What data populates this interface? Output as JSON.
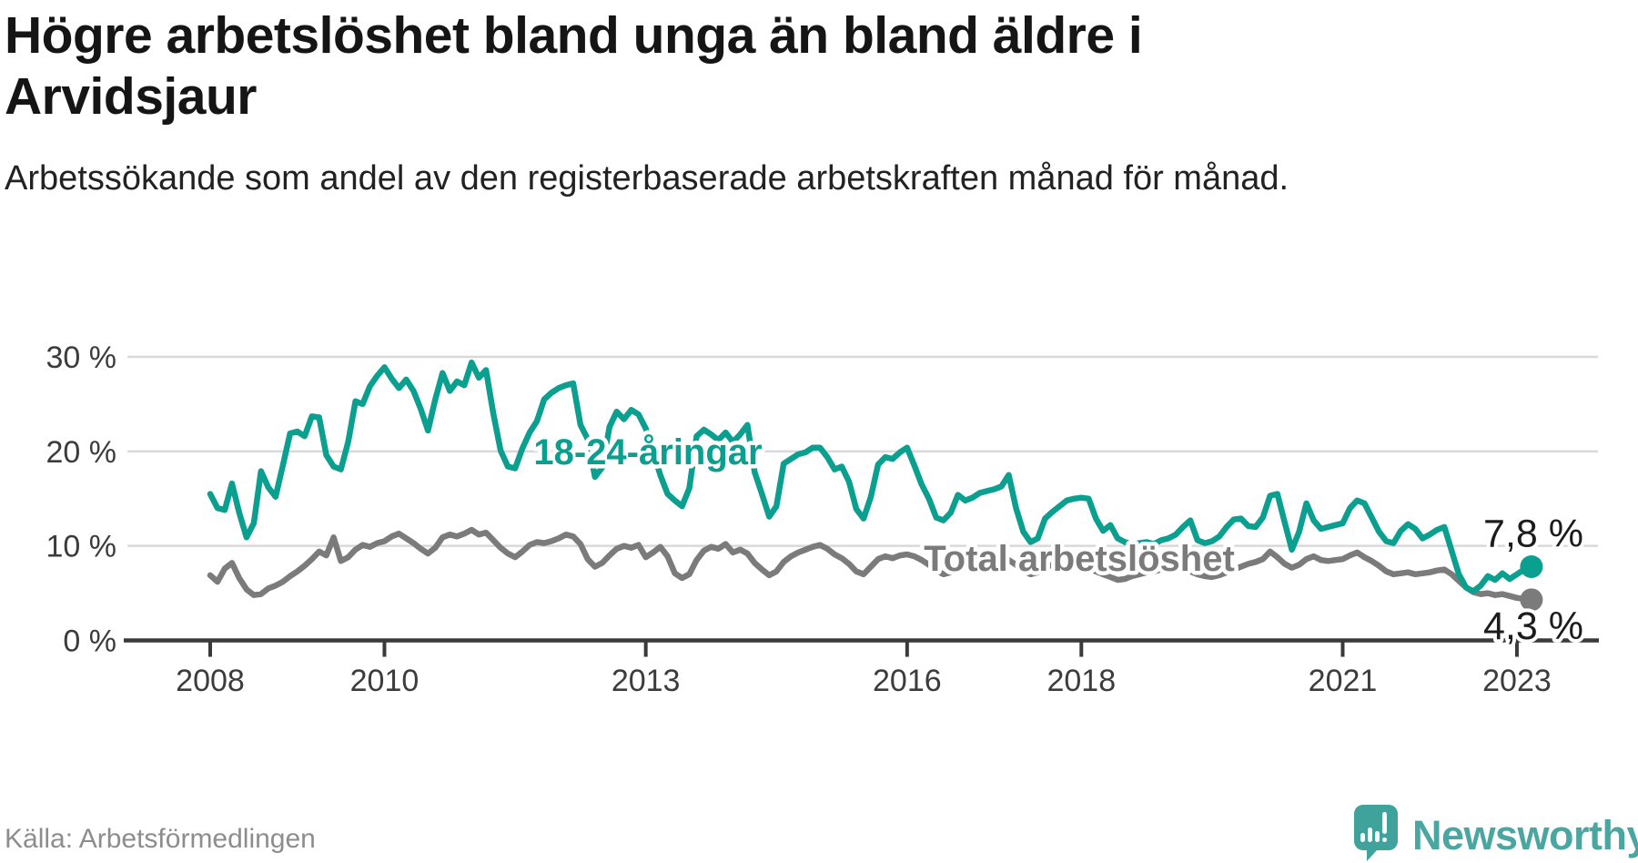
{
  "header": {
    "title": "Högre arbetslöshet bland unga än bland äldre i Arvidsjaur",
    "subtitle": "Arbetssökande som andel av den registerbaserade arbetskraften månad för månad."
  },
  "footer": {
    "source": "Källa: Arbetsförmedlingen",
    "brand_name": "Newsworthy",
    "brand_icon": "newsworthy-speech-bubble-bar-chart-icon",
    "brand_color": "#4aa6a1",
    "brand_icon_color": "#3fa29b"
  },
  "colors": {
    "young_series": "#0b9f90",
    "total_series": "#7b7b7b",
    "gridline": "#d9d9d9",
    "axis": "#3a3a3a",
    "axis_text": "#3c3c3c",
    "end_label_text": "#1c1c1c"
  },
  "chart_data": {
    "type": "line",
    "x_start": "2008-01",
    "x_end": "2023-03",
    "x_unit": "month",
    "grid": "horizontal-only",
    "ylim": [
      0,
      31.5
    ],
    "y_ticks": [
      {
        "value": 30,
        "label": "30 %"
      },
      {
        "value": 20,
        "label": "20 %"
      },
      {
        "value": 10,
        "label": "10 %"
      },
      {
        "value": 0,
        "label": "0 %"
      }
    ],
    "x_ticks": [
      {
        "year": 2008,
        "label": "2008"
      },
      {
        "year": 2010,
        "label": "2010"
      },
      {
        "year": 2013,
        "label": "2013"
      },
      {
        "year": 2016,
        "label": "2016"
      },
      {
        "year": 2018,
        "label": "2018"
      },
      {
        "year": 2021,
        "label": "2021"
      },
      {
        "year": 2023,
        "label": "2023"
      }
    ],
    "series": [
      {
        "name": "18-24-åringar",
        "color": "#0b9f90",
        "end_label": "7,8 %",
        "end_value": 7.8,
        "values": [
          15.5,
          14.0,
          13.8,
          16.6,
          13.5,
          10.9,
          12.4,
          17.9,
          16.2,
          15.2,
          18.5,
          21.9,
          22.1,
          21.6,
          23.7,
          23.6,
          19.6,
          18.4,
          18.1,
          21.0,
          25.3,
          25.0,
          26.9,
          28.0,
          28.9,
          27.7,
          26.7,
          27.6,
          26.4,
          24.5,
          22.2,
          25.5,
          28.3,
          26.4,
          27.4,
          27.0,
          29.4,
          27.8,
          28.6,
          24.0,
          20.1,
          18.4,
          18.2,
          20.3,
          22.0,
          23.2,
          25.5,
          26.2,
          26.7,
          27.0,
          27.2,
          22.8,
          21.3,
          17.3,
          18.3,
          22.6,
          24.2,
          23.4,
          24.4,
          23.9,
          22.4,
          20.0,
          17.5,
          15.5,
          14.8,
          14.2,
          16.1,
          21.6,
          22.3,
          21.8,
          21.2,
          22.0,
          21.0,
          21.8,
          22.8,
          17.8,
          15.5,
          13.1,
          14.2,
          18.7,
          19.2,
          19.7,
          19.9,
          20.4,
          20.4,
          19.4,
          18.1,
          18.4,
          16.8,
          13.9,
          12.9,
          15.2,
          18.6,
          19.4,
          19.2,
          19.9,
          20.4,
          18.5,
          16.5,
          15.0,
          13.0,
          12.7,
          13.5,
          15.4,
          14.8,
          15.1,
          15.6,
          15.8,
          16.0,
          16.3,
          17.5,
          14.0,
          11.5,
          10.4,
          10.8,
          12.9,
          13.6,
          14.2,
          14.8,
          15.0,
          15.1,
          15.0,
          12.9,
          11.6,
          12.2,
          10.8,
          10.4,
          10.2,
          10.3,
          10.4,
          10.2,
          10.6,
          10.8,
          11.2,
          12.0,
          12.7,
          10.6,
          10.3,
          10.5,
          11.0,
          12.0,
          12.8,
          12.9,
          12.1,
          12.0,
          13.0,
          15.3,
          15.5,
          12.5,
          9.6,
          11.5,
          14.5,
          12.7,
          11.8,
          12.0,
          12.2,
          12.4,
          14.0,
          14.8,
          14.5,
          13.0,
          11.5,
          10.5,
          10.3,
          11.6,
          12.3,
          11.8,
          10.8,
          11.2,
          11.7,
          12.0,
          9.5,
          7.0,
          5.6,
          5.2,
          5.8,
          6.8,
          6.4,
          7.1,
          6.5,
          7.0,
          7.5,
          7.8
        ]
      },
      {
        "name": "Total arbetslöshet",
        "color": "#7b7b7b",
        "end_label": "4,3 %",
        "end_value": 4.3,
        "values": [
          6.9,
          6.2,
          7.6,
          8.2,
          6.6,
          5.4,
          4.8,
          4.9,
          5.5,
          5.8,
          6.2,
          6.8,
          7.3,
          7.9,
          8.6,
          9.4,
          9.0,
          10.9,
          8.4,
          8.8,
          9.6,
          10.1,
          9.9,
          10.3,
          10.5,
          11.0,
          11.3,
          10.8,
          10.3,
          9.7,
          9.2,
          9.8,
          10.9,
          11.2,
          11.0,
          11.3,
          11.7,
          11.2,
          11.4,
          10.6,
          9.8,
          9.2,
          8.8,
          9.4,
          10.1,
          10.4,
          10.3,
          10.5,
          10.8,
          11.2,
          11.0,
          10.2,
          8.6,
          7.8,
          8.2,
          9.0,
          9.7,
          10.0,
          9.8,
          10.1,
          8.8,
          9.3,
          9.9,
          8.9,
          7.1,
          6.6,
          7.0,
          8.5,
          9.5,
          9.9,
          9.7,
          10.2,
          9.3,
          9.6,
          9.2,
          8.2,
          7.5,
          6.9,
          7.3,
          8.3,
          8.9,
          9.3,
          9.6,
          9.9,
          10.1,
          9.7,
          9.1,
          8.7,
          8.1,
          7.3,
          7.0,
          7.8,
          8.6,
          8.9,
          8.7,
          9.0,
          9.1,
          8.9,
          8.5,
          8.0,
          7.4,
          7.0,
          7.2,
          7.9,
          8.4,
          8.6,
          8.5,
          8.7,
          8.6,
          8.8,
          8.5,
          8.0,
          7.4,
          7.0,
          7.2,
          7.7,
          8.0,
          8.1,
          7.9,
          8.0,
          7.8,
          7.6,
          7.3,
          7.0,
          6.7,
          6.4,
          6.5,
          6.8,
          7.0,
          7.2,
          7.3,
          7.5,
          7.4,
          7.6,
          7.5,
          7.3,
          7.0,
          6.8,
          6.7,
          6.9,
          7.2,
          7.5,
          7.8,
          8.1,
          8.3,
          8.6,
          9.4,
          8.8,
          8.1,
          7.7,
          8.0,
          8.6,
          8.9,
          8.5,
          8.4,
          8.5,
          8.6,
          9.0,
          9.3,
          8.8,
          8.4,
          7.9,
          7.3,
          7.0,
          7.1,
          7.2,
          7.0,
          7.1,
          7.2,
          7.4,
          7.5,
          7.0,
          6.3,
          5.6,
          5.1,
          4.9,
          5.0,
          4.8,
          4.9,
          4.7,
          4.5,
          4.4,
          4.3
        ]
      }
    ]
  }
}
